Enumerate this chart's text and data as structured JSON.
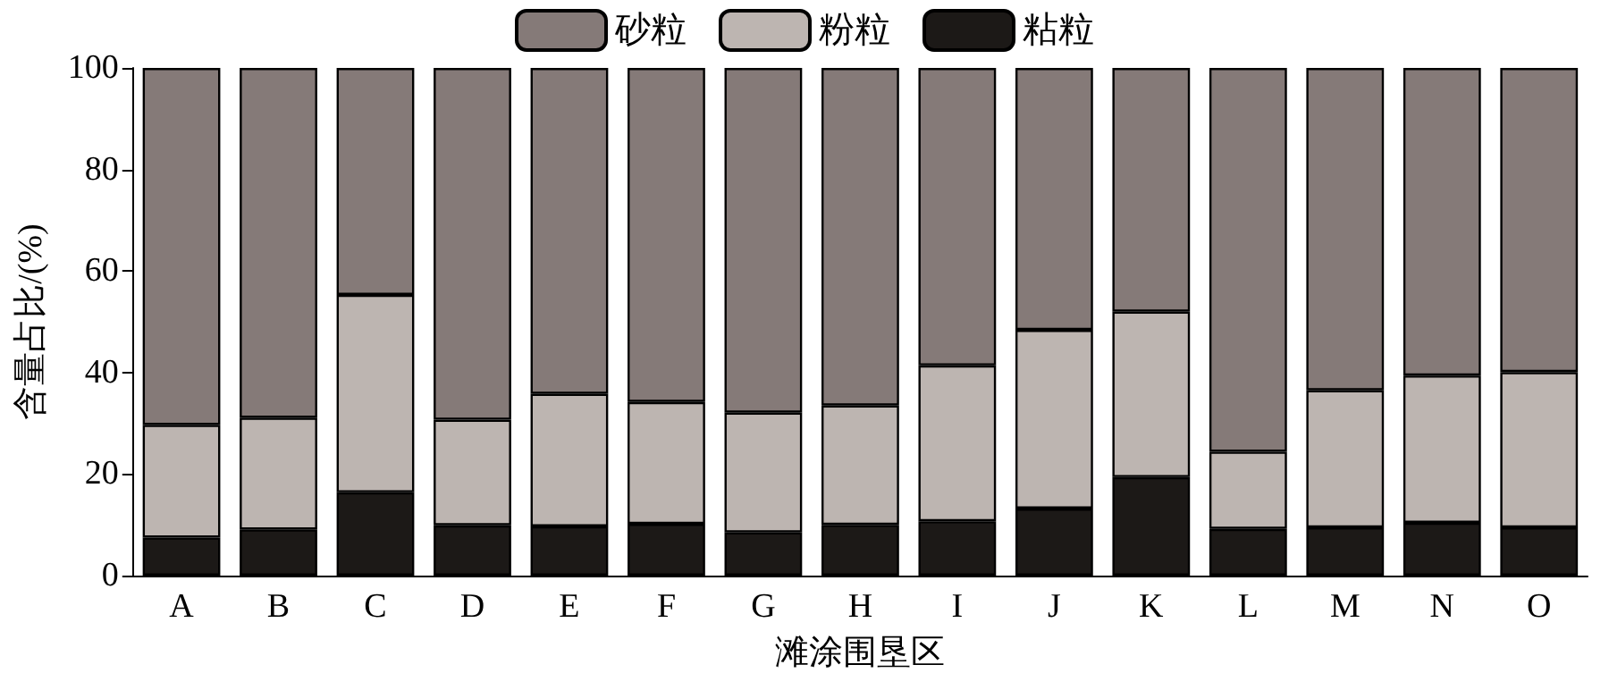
{
  "chart_data": {
    "type": "bar",
    "stacked": true,
    "xlabel": "滩涂围垦区",
    "ylabel": "含量占比/(%)",
    "categories": [
      "A",
      "B",
      "C",
      "D",
      "E",
      "F",
      "G",
      "H",
      "I",
      "J",
      "K",
      "L",
      "M",
      "N",
      "O"
    ],
    "series": [
      {
        "name": "粘粒",
        "color": "#1c1917",
        "values": [
          7.5,
          9.1,
          16.4,
          9.9,
          9.7,
          10.2,
          8.5,
          10.0,
          10.7,
          13.2,
          19.4,
          9.2,
          9.5,
          10.4,
          9.5
        ]
      },
      {
        "name": "粉粒",
        "color": "#bdb5b1",
        "values": [
          22.2,
          22.0,
          38.9,
          20.8,
          26.1,
          24.0,
          23.6,
          23.5,
          30.7,
          35.2,
          32.6,
          15.2,
          27.0,
          29.0,
          30.6
        ]
      },
      {
        "name": "砂粒",
        "color": "#857a78",
        "values": [
          70.3,
          68.9,
          44.7,
          69.3,
          64.2,
          65.8,
          67.9,
          66.5,
          58.6,
          51.6,
          48.0,
          75.6,
          63.5,
          60.6,
          59.9
        ]
      }
    ],
    "ylim": [
      0,
      100
    ],
    "yticks": [
      0,
      20,
      40,
      60,
      80,
      100
    ],
    "grid": false,
    "legend": "top"
  }
}
